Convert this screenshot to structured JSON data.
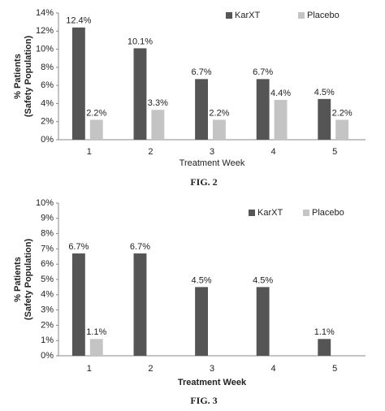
{
  "chart_data": [
    {
      "type": "bar",
      "caption": "FIG. 2",
      "x_label": "Treatment Week",
      "y_label": [
        "% Patients",
        "(Safety Population)"
      ],
      "categories": [
        "1",
        "2",
        "3",
        "4",
        "5"
      ],
      "series": [
        {
          "name": "KarXT",
          "color": "#555555",
          "values": [
            12.4,
            10.1,
            6.7,
            6.7,
            4.5
          ],
          "value_labels": [
            "12.4%",
            "10.1%",
            "6.7%",
            "6.7%",
            "4.5%"
          ]
        },
        {
          "name": "Placebo",
          "color": "#c4c4c4",
          "values": [
            2.2,
            3.3,
            2.2,
            4.4,
            2.2
          ],
          "value_labels": [
            "2.2%",
            "3.3%",
            "2.2%",
            "4.4%",
            "2.2%"
          ]
        }
      ],
      "ylim": [
        0,
        14
      ],
      "yticks": [
        {
          "value": 0,
          "label": "0%"
        },
        {
          "value": 2,
          "label": "2%"
        },
        {
          "value": 4,
          "label": "4%"
        },
        {
          "value": 6,
          "label": "6%"
        },
        {
          "value": 8,
          "label": "8%"
        },
        {
          "value": 10,
          "label": "10%"
        },
        {
          "value": 12,
          "label": "12%"
        },
        {
          "value": 14,
          "label": "14%"
        }
      ],
      "legend": "top-right"
    },
    {
      "type": "bar",
      "caption": "FIG. 3",
      "x_label": "Treatment Week",
      "y_label": [
        "% Patients",
        "(Safety Population)"
      ],
      "categories": [
        "1",
        "2",
        "3",
        "4",
        "5"
      ],
      "series": [
        {
          "name": "KarXT",
          "color": "#555555",
          "values": [
            6.7,
            6.7,
            4.5,
            4.5,
            1.1
          ],
          "value_labels": [
            "6.7%",
            "6.7%",
            "4.5%",
            "4.5%",
            "1.1%"
          ]
        },
        {
          "name": "Placebo",
          "color": "#c4c4c4",
          "values": [
            1.1,
            null,
            null,
            null,
            null
          ],
          "value_labels": [
            "1.1%",
            null,
            null,
            null,
            null
          ]
        }
      ],
      "ylim": [
        0,
        10
      ],
      "yticks": [
        {
          "value": 0,
          "label": "0%"
        },
        {
          "value": 1,
          "label": "1%"
        },
        {
          "value": 2,
          "label": "2%"
        },
        {
          "value": 3,
          "label": "3%"
        },
        {
          "value": 4,
          "label": "4%"
        },
        {
          "value": 5,
          "label": "5%"
        },
        {
          "value": 6,
          "label": "6%"
        },
        {
          "value": 7,
          "label": "7%"
        },
        {
          "value": 8,
          "label": "8%"
        },
        {
          "value": 9,
          "label": "9%"
        },
        {
          "value": 10,
          "label": "10%"
        }
      ],
      "legend": "top-right"
    }
  ]
}
